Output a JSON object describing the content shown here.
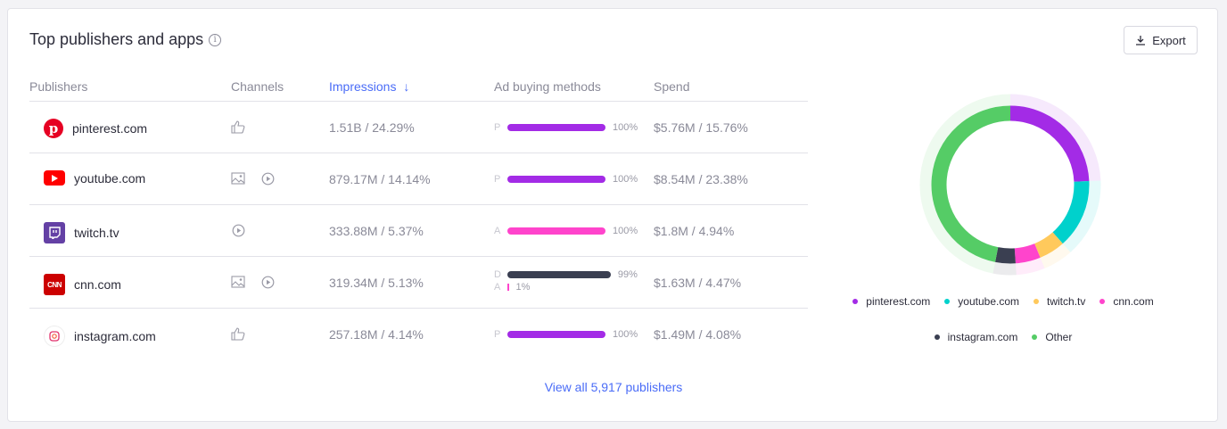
{
  "title": "Top publishers and apps",
  "export_label": "Export",
  "columns": {
    "publishers": "Publishers",
    "channels": "Channels",
    "impressions": "Impressions",
    "ad_buying": "Ad buying methods",
    "spend": "Spend"
  },
  "sort": {
    "column": "Impressions",
    "direction": "descending"
  },
  "rows": [
    {
      "name": "pinterest.com",
      "logo": "pinterest-logo",
      "logo_color": "#e60023",
      "channels": [
        "thumbs-up-icon"
      ],
      "impressions": "1.51B / 24.29%",
      "methods": [
        {
          "label": "P",
          "pct": 100,
          "pct_text": "100%",
          "color": "#a32be6"
        }
      ],
      "spend": "$5.76M / 15.76%"
    },
    {
      "name": "youtube.com",
      "logo": "youtube-logo",
      "logo_color": "#ff0000",
      "channels": [
        "image-icon",
        "play-icon"
      ],
      "impressions": "879.17M / 14.14%",
      "methods": [
        {
          "label": "P",
          "pct": 100,
          "pct_text": "100%",
          "color": "#a32be6"
        }
      ],
      "spend": "$8.54M / 23.38%"
    },
    {
      "name": "twitch.tv",
      "logo": "twitch-logo",
      "logo_color": "#6441a5",
      "channels": [
        "play-icon"
      ],
      "impressions": "333.88M / 5.37%",
      "methods": [
        {
          "label": "A",
          "pct": 100,
          "pct_text": "100%",
          "color": "#ff44cc"
        }
      ],
      "spend": "$1.8M / 4.94%"
    },
    {
      "name": "cnn.com",
      "logo": "cnn-logo",
      "logo_color": "#cc0000",
      "channels": [
        "image-icon",
        "play-icon"
      ],
      "impressions": "319.34M / 5.13%",
      "methods": [
        {
          "label": "D",
          "pct": 99,
          "pct_text": "99%",
          "color": "#3a3f51"
        },
        {
          "label": "A",
          "pct": 1,
          "pct_text": "1%",
          "color": "#ff44cc"
        }
      ],
      "spend": "$1.63M / 4.47%"
    },
    {
      "name": "instagram.com",
      "logo": "instagram-logo",
      "logo_color": "#e1306c",
      "channels": [
        "thumbs-up-icon"
      ],
      "impressions": "257.18M / 4.14%",
      "methods": [
        {
          "label": "P",
          "pct": 100,
          "pct_text": "100%",
          "color": "#a32be6"
        }
      ],
      "spend": "$1.49M / 4.08%"
    }
  ],
  "view_all": "View all 5,917 publishers",
  "chart_data": {
    "type": "pie",
    "variant": "donut",
    "categories": [
      "pinterest.com",
      "youtube.com",
      "twitch.tv",
      "cnn.com",
      "instagram.com",
      "Other"
    ],
    "values": [
      24.29,
      14.14,
      5.37,
      5.13,
      4.14,
      46.93
    ],
    "colors": [
      "#a32be6",
      "#00d1cc",
      "#ffc95c",
      "#ff44cc",
      "#3a3f51",
      "#55cc66"
    ],
    "legend": "bottom"
  }
}
